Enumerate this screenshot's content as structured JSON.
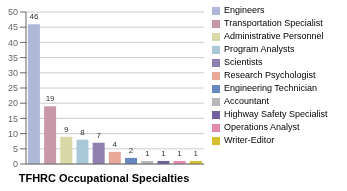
{
  "chart_data": {
    "type": "bar",
    "title": "TFHRC Occupational Specialties",
    "categories": [
      "Engineers",
      "Transportation Specialist",
      "Administrative Personnel",
      "Program Analysts",
      "Scientists",
      "Research Psychologist",
      "Engineering Technician",
      "Accountant",
      "Highway Safety Specialist",
      "Operations Analyst",
      "Writer-Editor"
    ],
    "values": [
      46,
      19,
      9,
      8,
      7,
      4,
      2,
      1,
      1,
      1,
      1
    ],
    "colors": [
      "#b0b8d8",
      "#c898a8",
      "#d8d8a8",
      "#a8c8d8",
      "#9080b0",
      "#e8a898",
      "#6888c0",
      "#b8b8b8",
      "#7060a0",
      "#e888b0",
      "#d4c030"
    ],
    "ylim": [
      0,
      50
    ],
    "yticks": [
      0,
      5,
      10,
      15,
      20,
      25,
      30,
      35,
      40,
      45,
      50
    ],
    "grid": true,
    "data_labels": true,
    "legend": "right",
    "tick_labels": "y"
  }
}
